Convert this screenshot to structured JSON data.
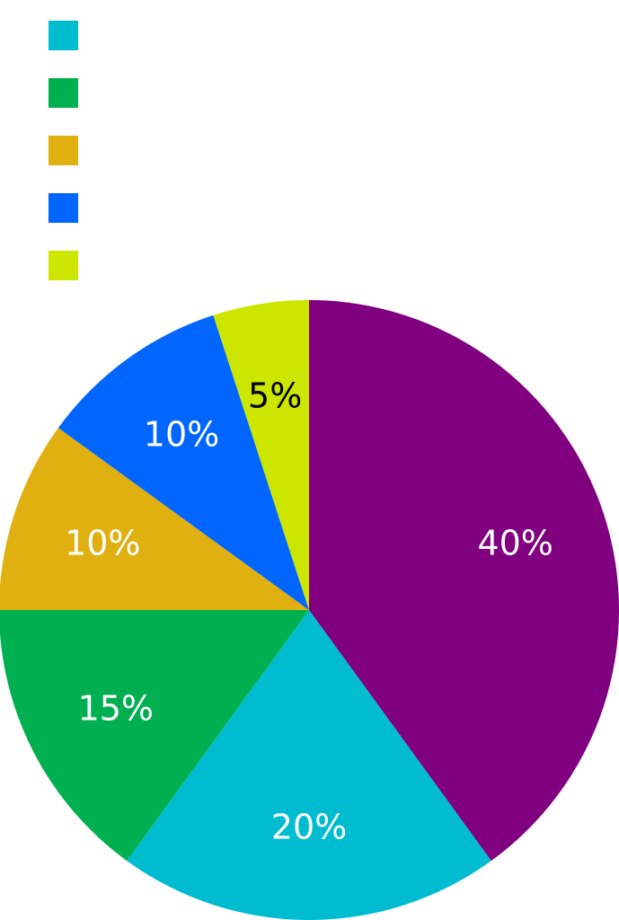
{
  "chart_data": {
    "type": "pie",
    "title": "",
    "legend": "top-left",
    "series": [
      {
        "value": 40,
        "color": "#800080",
        "label": "40%",
        "label_color": "#ffffff"
      },
      {
        "value": 20,
        "color": "#00BCD0",
        "label": "20%",
        "label_color": "#ffffff"
      },
      {
        "value": 15,
        "color": "#00B050",
        "label": "15%",
        "label_color": "#ffffff"
      },
      {
        "value": 10,
        "color": "#E0B010",
        "label": "10%",
        "label_color": "#ffffff"
      },
      {
        "value": 10,
        "color": "#0066FF",
        "label": "10%",
        "label_color": "#ffffff"
      },
      {
        "value": 5,
        "color": "#CCE600",
        "label": "5%",
        "label_color": "#000000"
      }
    ],
    "legend_colors": [
      "#00BCD0",
      "#00B050",
      "#E0B010",
      "#0066FF",
      "#CCE600"
    ]
  }
}
